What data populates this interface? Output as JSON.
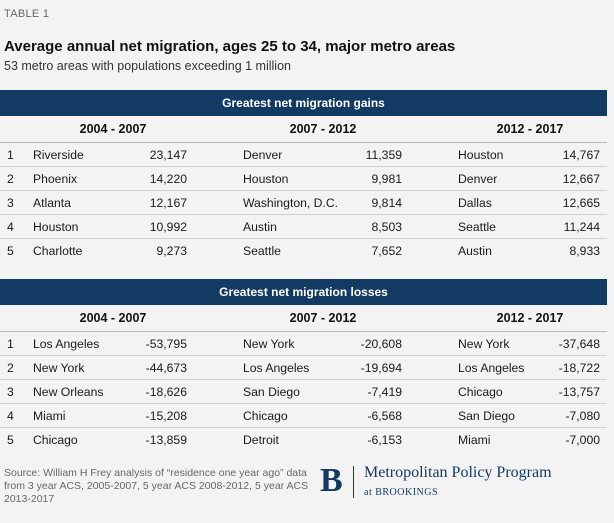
{
  "label": "TABLE 1",
  "title": "Average annual net migration, ages 25 to 34, major metro areas",
  "subtitle": "53 metro areas with populations exceeding 1 million",
  "periods": [
    "2004 - 2007",
    "2007 - 2012",
    "2012 - 2017"
  ],
  "gains": {
    "banner": "Greatest net migration gains",
    "rows": [
      {
        "rank": "1",
        "m1": "Riverside",
        "v1": "23,147",
        "m2": "Denver",
        "v2": "11,359",
        "m3": "Houston",
        "v3": "14,767"
      },
      {
        "rank": "2",
        "m1": "Phoenix",
        "v1": "14,220",
        "m2": "Houston",
        "v2": "9,981",
        "m3": "Denver",
        "v3": "12,667"
      },
      {
        "rank": "3",
        "m1": "Atlanta",
        "v1": "12,167",
        "m2": "Washington, D.C.",
        "v2": "9,814",
        "m3": "Dallas",
        "v3": "12,665"
      },
      {
        "rank": "4",
        "m1": "Houston",
        "v1": "10,992",
        "m2": "Austin",
        "v2": "8,503",
        "m3": "Seattle",
        "v3": "11,244"
      },
      {
        "rank": "5",
        "m1": "Charlotte",
        "v1": "9,273",
        "m2": "Seattle",
        "v2": "7,652",
        "m3": "Austin",
        "v3": "8,933"
      }
    ]
  },
  "losses": {
    "banner": "Greatest net migration losses",
    "rows": [
      {
        "rank": "1",
        "m1": "Los Angeles",
        "v1": "-53,795",
        "m2": "New York",
        "v2": "-20,608",
        "m3": "New York",
        "v3": "-37,648"
      },
      {
        "rank": "2",
        "m1": "New York",
        "v1": "-44,673",
        "m2": "Los Angeles",
        "v2": "-19,694",
        "m3": "Los Angeles",
        "v3": "-18,722"
      },
      {
        "rank": "3",
        "m1": "New Orleans",
        "v1": "-18,626",
        "m2": "San Diego",
        "v2": "-7,419",
        "m3": "Chicago",
        "v3": "-13,757"
      },
      {
        "rank": "4",
        "m1": "Miami",
        "v1": "-15,208",
        "m2": "Chicago",
        "v2": "-6,568",
        "m3": "San Diego",
        "v3": "-7,080"
      },
      {
        "rank": "5",
        "m1": "Chicago",
        "v1": "-13,859",
        "m2": "Detroit",
        "v2": "-6,153",
        "m3": "Miami",
        "v3": "-7,000"
      }
    ]
  },
  "source": "Source: William H Frey analysis of “residence one year ago” data from 3 year ACS, 2005-2007, 5 year ACS 2008-2012, 5 year ACS 2013-2017",
  "logo": {
    "letter": "B",
    "org": "Metropolitan Policy Program",
    "sub": "at BROOKINGS",
    "color": "#133a63"
  }
}
